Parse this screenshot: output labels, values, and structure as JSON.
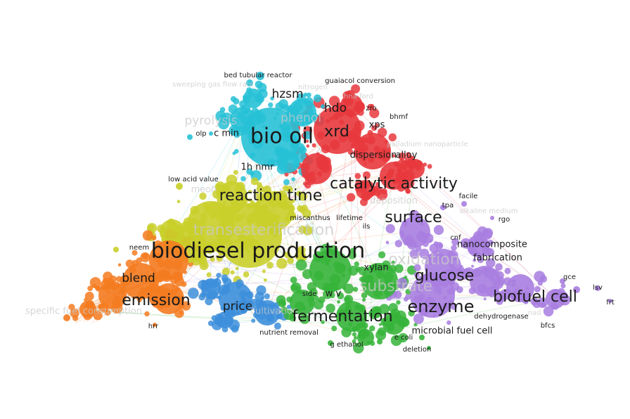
{
  "map": {
    "type": "term co-occurrence network",
    "colors": {
      "red": "#e8383d",
      "cyan": "#27c1d6",
      "yellow": "#c9cf2a",
      "orange": "#f47b20",
      "blue": "#3d8fdb",
      "green": "#36b43a",
      "purple": "#a87ee0"
    },
    "clusters": [
      {
        "name": "red",
        "color": "#e8383d"
      },
      {
        "name": "cyan",
        "color": "#27c1d6"
      },
      {
        "name": "yellow",
        "color": "#c9cf2a"
      },
      {
        "name": "orange",
        "color": "#f47b20"
      },
      {
        "name": "blue",
        "color": "#3d8fdb"
      },
      {
        "name": "green",
        "color": "#36b43a"
      },
      {
        "name": "purple",
        "color": "#a87ee0"
      }
    ],
    "labels": [
      {
        "text": "bed tubular reactor",
        "cluster": "cyan",
        "weight": 1
      },
      {
        "text": "sweeping gas flow rate",
        "cluster": "cyan",
        "weight": 1,
        "faded": true
      },
      {
        "text": "hzsm",
        "cluster": "cyan",
        "weight": 3
      },
      {
        "text": "phenol",
        "cluster": "cyan",
        "weight": 3,
        "faded": true
      },
      {
        "text": "pyrolysis",
        "cluster": "cyan",
        "weight": 3,
        "faded": true
      },
      {
        "text": "olp",
        "cluster": "cyan",
        "weight": 1
      },
      {
        "text": "c min",
        "cluster": "cyan",
        "weight": 2
      },
      {
        "text": "bio oil",
        "cluster": "cyan",
        "weight": 6
      },
      {
        "text": "1h nmr",
        "cluster": "cyan",
        "weight": 2
      },
      {
        "text": "guaiacol conversion",
        "cluster": "red",
        "weight": 1
      },
      {
        "text": "nitrogen",
        "cluster": "red",
        "weight": 1,
        "faded": true
      },
      {
        "text": "hna ford",
        "cluster": "red",
        "weight": 1,
        "faded": true
      },
      {
        "text": "hdo",
        "cluster": "red",
        "weight": 3
      },
      {
        "text": "zro",
        "cluster": "red",
        "weight": 1
      },
      {
        "text": "bhmf",
        "cluster": "red",
        "weight": 1
      },
      {
        "text": "xrd",
        "cluster": "red",
        "weight": 4
      },
      {
        "text": "xps",
        "cluster": "red",
        "weight": 2
      },
      {
        "text": "palladium nanoparticle",
        "cluster": "red",
        "weight": 1,
        "faded": true
      },
      {
        "text": "dispersion",
        "cluster": "red",
        "weight": 2
      },
      {
        "text": "alloy",
        "cluster": "red",
        "weight": 2
      },
      {
        "text": "catalytic activity",
        "cluster": "red",
        "weight": 4
      },
      {
        "text": "deposition",
        "cluster": "red",
        "weight": 2,
        "faded": true
      },
      {
        "text": "low acid value",
        "cluster": "yellow",
        "weight": 1
      },
      {
        "text": "meoh",
        "cluster": "yellow",
        "weight": 2,
        "faded": true
      },
      {
        "text": "reaction time",
        "cluster": "yellow",
        "weight": 4
      },
      {
        "text": "transesterification",
        "cluster": "yellow",
        "weight": 4,
        "faded": true
      },
      {
        "text": "miscanthus",
        "cluster": "yellow",
        "weight": 1
      },
      {
        "text": "neem",
        "cluster": "yellow",
        "weight": 1
      },
      {
        "text": "biodiesel production",
        "cluster": "yellow",
        "weight": 6
      },
      {
        "text": "blend",
        "cluster": "orange",
        "weight": 3
      },
      {
        "text": "emission",
        "cluster": "orange",
        "weight": 4
      },
      {
        "text": "specific fuel consumption",
        "cluster": "orange",
        "weight": 2,
        "faded": true
      },
      {
        "text": "hrr",
        "cluster": "orange",
        "weight": 1
      },
      {
        "text": "price",
        "cluster": "blue",
        "weight": 3
      },
      {
        "text": "cultivation",
        "cluster": "blue",
        "weight": 2,
        "faded": true
      },
      {
        "text": "nutrient removal",
        "cluster": "blue",
        "weight": 1
      },
      {
        "text": "side",
        "cluster": "blue",
        "weight": 1
      },
      {
        "text": "lifetime",
        "cluster": "green",
        "weight": 1
      },
      {
        "text": "ils",
        "cluster": "green",
        "weight": 1
      },
      {
        "text": "xylan",
        "cluster": "green",
        "weight": 2
      },
      {
        "text": "w v",
        "cluster": "green",
        "weight": 2
      },
      {
        "text": "substrate",
        "cluster": "green",
        "weight": 4,
        "faded": true
      },
      {
        "text": "fermentation",
        "cluster": "green",
        "weight": 4
      },
      {
        "text": "g ethanol",
        "cluster": "green",
        "weight": 1
      },
      {
        "text": "e coli",
        "cluster": "green",
        "weight": 1
      },
      {
        "text": "deletion",
        "cluster": "green",
        "weight": 1
      },
      {
        "text": "surface",
        "cluster": "purple",
        "weight": 4
      },
      {
        "text": "facile",
        "cluster": "purple",
        "weight": 1
      },
      {
        "text": "tpa",
        "cluster": "purple",
        "weight": 1
      },
      {
        "text": "alkaline medium",
        "cluster": "purple",
        "weight": 1,
        "faded": true
      },
      {
        "text": "rgo",
        "cluster": "purple",
        "weight": 1
      },
      {
        "text": "cnf",
        "cluster": "purple",
        "weight": 1
      },
      {
        "text": "nanocomposite",
        "cluster": "purple",
        "weight": 2
      },
      {
        "text": "oxidation",
        "cluster": "purple",
        "weight": 4,
        "faded": true
      },
      {
        "text": "fabrication",
        "cluster": "purple",
        "weight": 2
      },
      {
        "text": "glucose",
        "cluster": "purple",
        "weight": 4
      },
      {
        "text": "enzyme",
        "cluster": "purple",
        "weight": 5
      },
      {
        "text": "biofuel cell",
        "cluster": "purple",
        "weight": 4
      },
      {
        "text": "dehydrogenase",
        "cluster": "purple",
        "weight": 1
      },
      {
        "text": "nad",
        "cluster": "purple",
        "weight": 1,
        "faded": true
      },
      {
        "text": "microbial fuel cell",
        "cluster": "purple",
        "weight": 2
      },
      {
        "text": "bfcs",
        "cluster": "purple",
        "weight": 1
      },
      {
        "text": "gce",
        "cluster": "purple",
        "weight": 1
      },
      {
        "text": "lsv",
        "cluster": "purple",
        "weight": 1
      },
      {
        "text": "frt",
        "cluster": "purple",
        "weight": 1
      }
    ]
  }
}
